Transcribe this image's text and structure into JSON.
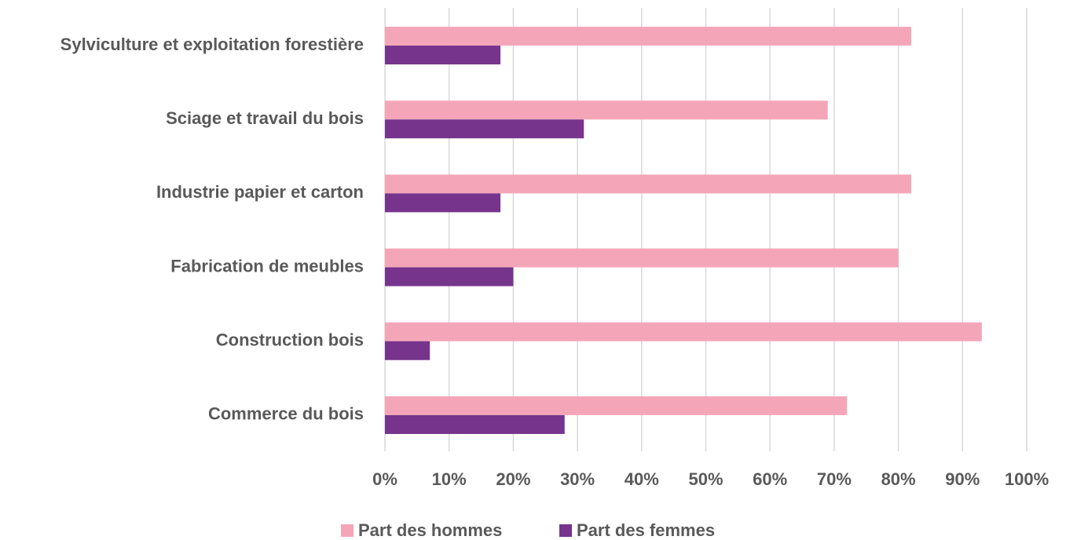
{
  "chart_data": {
    "type": "bar",
    "orientation": "horizontal",
    "categories": [
      "Sylviculture et exploitation forestière",
      "Sciage et travail du bois",
      "Industrie papier et carton",
      "Fabrication de meubles",
      "Construction bois",
      "Commerce du bois"
    ],
    "series": [
      {
        "name": "Part des hommes",
        "color": "#f4a6b8",
        "values": [
          82,
          69,
          82,
          80,
          93,
          72
        ]
      },
      {
        "name": "Part des femmes",
        "color": "#76348d",
        "values": [
          18,
          31,
          18,
          20,
          7,
          28
        ]
      }
    ],
    "xlim": [
      0,
      100
    ],
    "xticks": [
      {
        "value": 0,
        "label": "0%"
      },
      {
        "value": 10,
        "label": "10%"
      },
      {
        "value": 20,
        "label": "20%"
      },
      {
        "value": 30,
        "label": "30%"
      },
      {
        "value": 40,
        "label": "40%"
      },
      {
        "value": 50,
        "label": "50%"
      },
      {
        "value": 60,
        "label": "60%"
      },
      {
        "value": 70,
        "label": "70%"
      },
      {
        "value": 80,
        "label": "80%"
      },
      {
        "value": 90,
        "label": "90%"
      },
      {
        "value": 100,
        "label": "100%"
      }
    ],
    "grid": true,
    "legend": "bottom"
  }
}
